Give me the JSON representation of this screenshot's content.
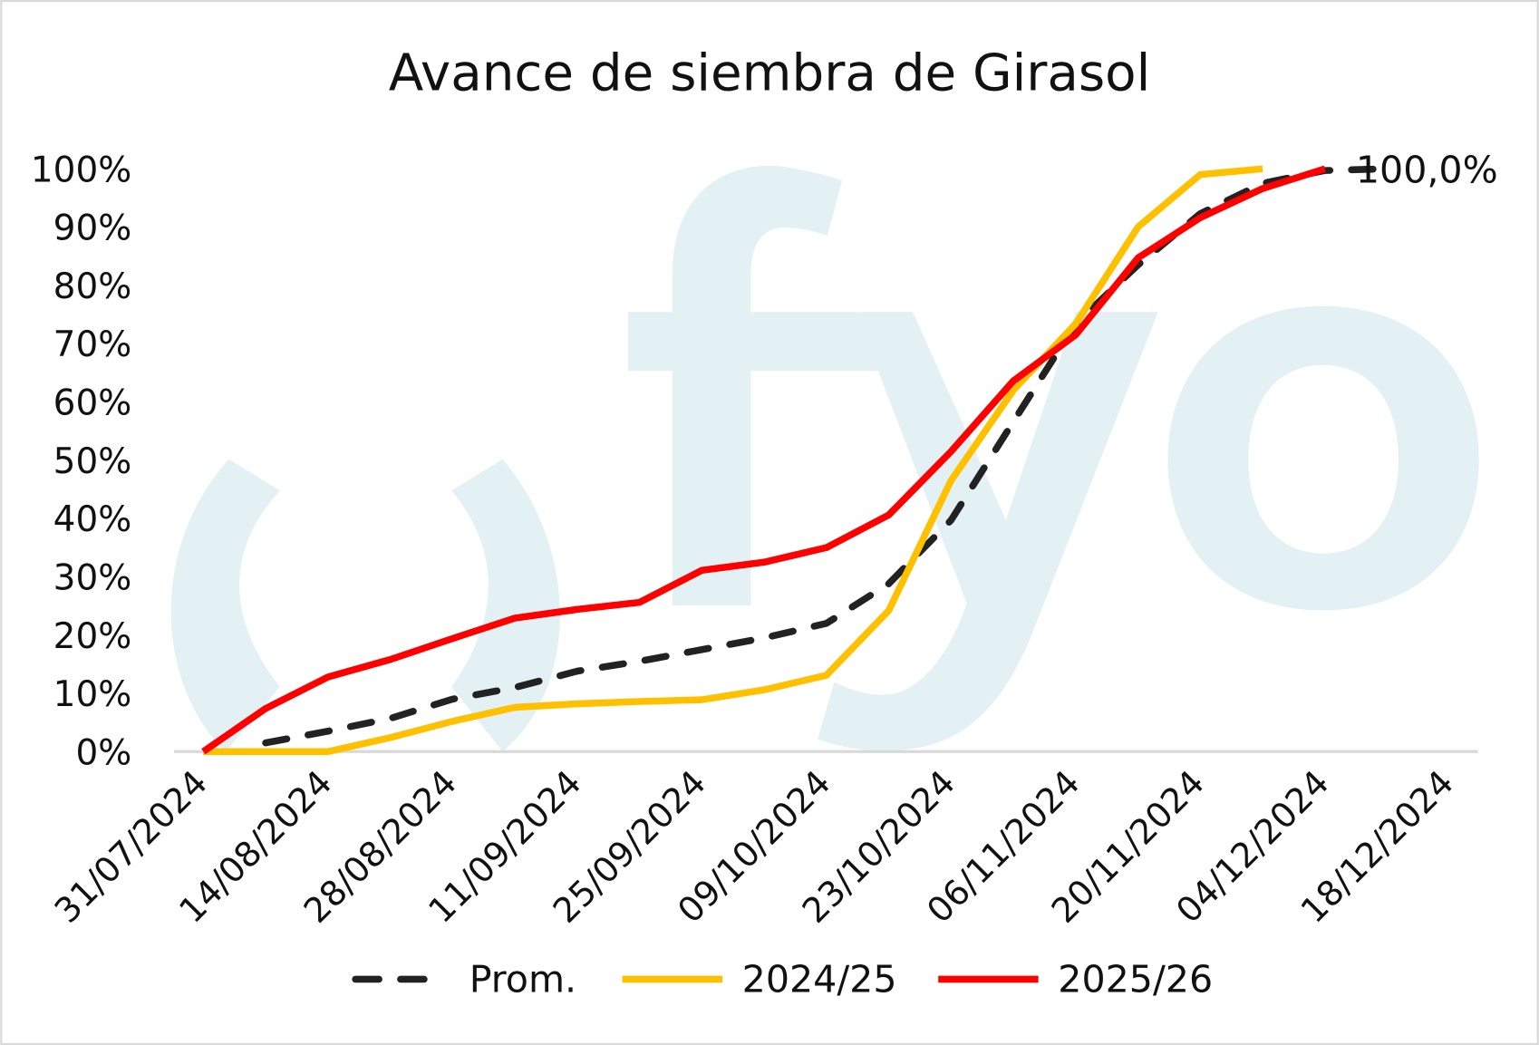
{
  "chart_data": {
    "type": "line",
    "title": "Avance de siembra de Girasol",
    "xlabel": "",
    "ylabel": "",
    "x_tick_labels": [
      "31/07/2024",
      "14/08/2024",
      "28/08/2024",
      "11/09/2024",
      "25/09/2024",
      "09/10/2024",
      "23/10/2024",
      "06/11/2024",
      "20/11/2024",
      "04/12/2024",
      "18/12/2024"
    ],
    "y_tick_labels": [
      "0%",
      "10%",
      "20%",
      "30%",
      "40%",
      "50%",
      "60%",
      "70%",
      "80%",
      "90%",
      "100%"
    ],
    "ylim": [
      0,
      100
    ],
    "xlim": [
      "31/07/2024",
      "18/12/2024"
    ],
    "grid": false,
    "legend_position": "bottom",
    "x": [
      "31/07/2024",
      "07/08/2024",
      "14/08/2024",
      "21/08/2024",
      "28/08/2024",
      "04/09/2024",
      "11/09/2024",
      "18/09/2024",
      "25/09/2024",
      "02/10/2024",
      "09/10/2024",
      "16/10/2024",
      "23/10/2024",
      "30/10/2024",
      "06/11/2024",
      "13/11/2024",
      "20/11/2024",
      "27/11/2024",
      "04/12/2024",
      "11/12/2024"
    ],
    "series": [
      {
        "name": "Prom.",
        "color": "#222222",
        "dash": true,
        "values": [
          null,
          1.5,
          3.5,
          5.7,
          9,
          11,
          13.8,
          15.5,
          17.5,
          19.5,
          22,
          28.8,
          39.7,
          56.6,
          73.4,
          83.5,
          92.3,
          97.5,
          99.7,
          100
        ]
      },
      {
        "name": "2024/25",
        "color": "#FFC000",
        "values": [
          0,
          0,
          0,
          2.4,
          5.2,
          7.6,
          8.2,
          8.6,
          8.9,
          10.6,
          13.1,
          24.2,
          46.5,
          62,
          73.4,
          90,
          99,
          100,
          null,
          null
        ]
      },
      {
        "name": "2025/26",
        "color": "#FF0000",
        "values": [
          0,
          7.4,
          12.8,
          15.8,
          19.4,
          22.9,
          24.4,
          25.6,
          31.1,
          32.5,
          35,
          40.6,
          51.5,
          63.6,
          71.5,
          84.7,
          91.6,
          96.6,
          100,
          null
        ]
      }
    ],
    "annotations": [
      {
        "series": "Prom.",
        "x": "11/12/2024",
        "text": "100,0%"
      }
    ],
    "watermark": "fyo",
    "watermark_color": "#E3F1F5"
  }
}
